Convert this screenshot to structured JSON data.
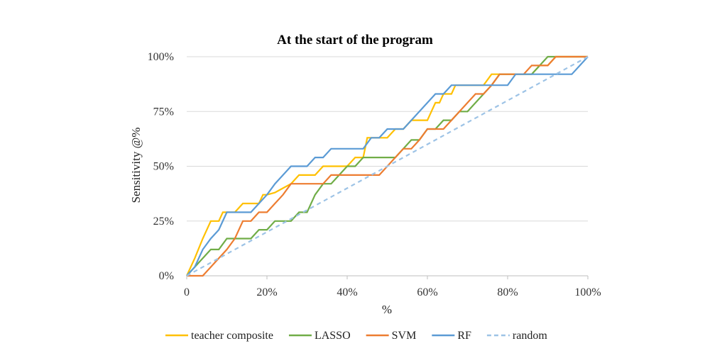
{
  "chart_data": {
    "type": "line",
    "title": "At the start of the program",
    "xlabel": "%",
    "ylabel": "Sensitivity @%",
    "xlim": [
      0,
      100
    ],
    "ylim": [
      0,
      100
    ],
    "x_ticks": [
      "0",
      "20%",
      "40%",
      "60%",
      "80%",
      "100%"
    ],
    "y_ticks": [
      "0%",
      "25%",
      "50%",
      "75%",
      "100%"
    ],
    "grid": "horizontal",
    "legend_position": "bottom",
    "series": [
      {
        "name": "teacher composite",
        "color": "#ffc000",
        "dash": "solid",
        "points": [
          [
            0,
            0
          ],
          [
            2,
            8
          ],
          [
            4,
            17
          ],
          [
            6,
            25
          ],
          [
            8,
            25
          ],
          [
            9,
            29
          ],
          [
            10,
            29
          ],
          [
            12,
            29
          ],
          [
            14,
            33
          ],
          [
            16,
            33
          ],
          [
            18,
            33
          ],
          [
            19,
            37
          ],
          [
            20,
            37
          ],
          [
            22,
            38
          ],
          [
            24,
            40
          ],
          [
            26,
            42
          ],
          [
            28,
            46
          ],
          [
            30,
            46
          ],
          [
            32,
            46
          ],
          [
            34,
            50
          ],
          [
            36,
            50
          ],
          [
            38,
            50
          ],
          [
            40,
            50
          ],
          [
            42,
            54
          ],
          [
            44,
            54
          ],
          [
            45,
            63
          ],
          [
            47,
            63
          ],
          [
            48,
            63
          ],
          [
            50,
            63
          ],
          [
            52,
            67
          ],
          [
            54,
            67
          ],
          [
            56,
            71
          ],
          [
            58,
            71
          ],
          [
            60,
            71
          ],
          [
            61,
            75
          ],
          [
            62,
            79
          ],
          [
            63,
            79
          ],
          [
            64,
            83
          ],
          [
            66,
            83
          ],
          [
            67,
            87
          ],
          [
            68,
            87
          ],
          [
            70,
            87
          ],
          [
            72,
            87
          ],
          [
            74,
            87
          ],
          [
            76,
            92
          ],
          [
            78,
            92
          ],
          [
            80,
            92
          ],
          [
            82,
            92
          ],
          [
            84,
            92
          ],
          [
            86,
            92
          ],
          [
            88,
            96
          ],
          [
            90,
            96
          ],
          [
            92,
            100
          ],
          [
            94,
            100
          ],
          [
            96,
            100
          ],
          [
            98,
            100
          ],
          [
            100,
            100
          ]
        ]
      },
      {
        "name": "LASSO",
        "color": "#70ad47",
        "dash": "solid",
        "points": [
          [
            0,
            0
          ],
          [
            2,
            4
          ],
          [
            4,
            8
          ],
          [
            6,
            12
          ],
          [
            8,
            12
          ],
          [
            10,
            17
          ],
          [
            12,
            17
          ],
          [
            14,
            17
          ],
          [
            16,
            17
          ],
          [
            18,
            21
          ],
          [
            20,
            21
          ],
          [
            22,
            25
          ],
          [
            24,
            25
          ],
          [
            26,
            25
          ],
          [
            28,
            29
          ],
          [
            30,
            29
          ],
          [
            32,
            37
          ],
          [
            34,
            42
          ],
          [
            36,
            42
          ],
          [
            38,
            46
          ],
          [
            40,
            50
          ],
          [
            42,
            50
          ],
          [
            44,
            54
          ],
          [
            46,
            54
          ],
          [
            48,
            54
          ],
          [
            50,
            54
          ],
          [
            52,
            54
          ],
          [
            54,
            58
          ],
          [
            56,
            62
          ],
          [
            58,
            62
          ],
          [
            60,
            67
          ],
          [
            62,
            67
          ],
          [
            64,
            71
          ],
          [
            66,
            71
          ],
          [
            68,
            75
          ],
          [
            70,
            75
          ],
          [
            72,
            79
          ],
          [
            74,
            83
          ],
          [
            76,
            87
          ],
          [
            78,
            92
          ],
          [
            80,
            92
          ],
          [
            82,
            92
          ],
          [
            84,
            92
          ],
          [
            86,
            92
          ],
          [
            88,
            96
          ],
          [
            90,
            100
          ],
          [
            92,
            100
          ],
          [
            94,
            100
          ],
          [
            96,
            100
          ],
          [
            98,
            100
          ],
          [
            100,
            100
          ]
        ]
      },
      {
        "name": "SVM",
        "color": "#ed7d31",
        "dash": "solid",
        "points": [
          [
            0,
            0
          ],
          [
            2,
            0
          ],
          [
            4,
            0
          ],
          [
            6,
            4
          ],
          [
            8,
            8
          ],
          [
            10,
            12
          ],
          [
            12,
            17
          ],
          [
            14,
            25
          ],
          [
            16,
            25
          ],
          [
            18,
            29
          ],
          [
            20,
            29
          ],
          [
            22,
            33
          ],
          [
            24,
            37
          ],
          [
            26,
            42
          ],
          [
            28,
            42
          ],
          [
            30,
            42
          ],
          [
            32,
            42
          ],
          [
            34,
            42
          ],
          [
            36,
            46
          ],
          [
            38,
            46
          ],
          [
            40,
            46
          ],
          [
            42,
            46
          ],
          [
            44,
            46
          ],
          [
            46,
            46
          ],
          [
            48,
            46
          ],
          [
            50,
            50
          ],
          [
            52,
            54
          ],
          [
            54,
            58
          ],
          [
            56,
            58
          ],
          [
            58,
            62
          ],
          [
            60,
            67
          ],
          [
            62,
            67
          ],
          [
            64,
            67
          ],
          [
            66,
            71
          ],
          [
            68,
            75
          ],
          [
            70,
            79
          ],
          [
            72,
            83
          ],
          [
            74,
            83
          ],
          [
            76,
            87
          ],
          [
            78,
            92
          ],
          [
            80,
            92
          ],
          [
            82,
            92
          ],
          [
            84,
            92
          ],
          [
            86,
            96
          ],
          [
            88,
            96
          ],
          [
            90,
            96
          ],
          [
            92,
            100
          ],
          [
            94,
            100
          ],
          [
            96,
            100
          ],
          [
            98,
            100
          ],
          [
            100,
            100
          ]
        ]
      },
      {
        "name": "RF",
        "color": "#5b9bd5",
        "dash": "solid",
        "points": [
          [
            0,
            0
          ],
          [
            2,
            4
          ],
          [
            4,
            12
          ],
          [
            6,
            17
          ],
          [
            8,
            21
          ],
          [
            10,
            29
          ],
          [
            12,
            29
          ],
          [
            14,
            29
          ],
          [
            16,
            29
          ],
          [
            18,
            33
          ],
          [
            20,
            37
          ],
          [
            22,
            42
          ],
          [
            24,
            46
          ],
          [
            26,
            50
          ],
          [
            28,
            50
          ],
          [
            30,
            50
          ],
          [
            32,
            54
          ],
          [
            34,
            54
          ],
          [
            36,
            58
          ],
          [
            38,
            58
          ],
          [
            40,
            58
          ],
          [
            42,
            58
          ],
          [
            44,
            58
          ],
          [
            46,
            63
          ],
          [
            48,
            63
          ],
          [
            50,
            67
          ],
          [
            52,
            67
          ],
          [
            54,
            67
          ],
          [
            56,
            71
          ],
          [
            58,
            75
          ],
          [
            60,
            79
          ],
          [
            62,
            83
          ],
          [
            64,
            83
          ],
          [
            66,
            87
          ],
          [
            68,
            87
          ],
          [
            70,
            87
          ],
          [
            72,
            87
          ],
          [
            74,
            87
          ],
          [
            76,
            87
          ],
          [
            78,
            87
          ],
          [
            80,
            87
          ],
          [
            82,
            92
          ],
          [
            84,
            92
          ],
          [
            86,
            92
          ],
          [
            88,
            92
          ],
          [
            90,
            92
          ],
          [
            92,
            92
          ],
          [
            94,
            92
          ],
          [
            96,
            92
          ],
          [
            98,
            96
          ],
          [
            100,
            100
          ]
        ]
      },
      {
        "name": "random",
        "color": "#9dc3e6",
        "dash": "dashed",
        "points": [
          [
            0,
            0
          ],
          [
            100,
            100
          ]
        ]
      }
    ]
  }
}
